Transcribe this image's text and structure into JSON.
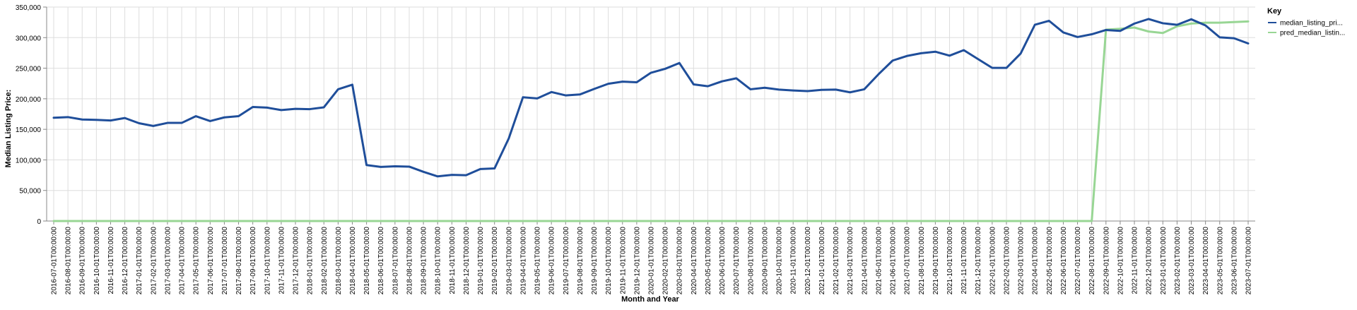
{
  "chart_data": {
    "type": "line",
    "xlabel": "Month and Year",
    "ylabel": "Median Listing Price:",
    "ylim": [
      0,
      350000
    ],
    "yticks": [
      0,
      50000,
      100000,
      150000,
      200000,
      250000,
      300000,
      350000
    ],
    "ytick_labels": [
      "0",
      "50,000",
      "100,000",
      "150,000",
      "200,000",
      "250,000",
      "300,000",
      "350,000"
    ],
    "grid": true,
    "legend": {
      "title": "Key",
      "position": "right"
    },
    "x": [
      "2016-07-01T00:00:00",
      "2016-08-01T00:00:00",
      "2016-09-01T00:00:00",
      "2016-10-01T00:00:00",
      "2016-11-01T00:00:00",
      "2016-12-01T00:00:00",
      "2017-01-01T00:00:00",
      "2017-02-01T00:00:00",
      "2017-03-01T00:00:00",
      "2017-04-01T00:00:00",
      "2017-05-01T00:00:00",
      "2017-06-01T00:00:00",
      "2017-07-01T00:00:00",
      "2017-08-01T00:00:00",
      "2017-09-01T00:00:00",
      "2017-10-01T00:00:00",
      "2017-11-01T00:00:00",
      "2017-12-01T00:00:00",
      "2018-01-01T00:00:00",
      "2018-02-01T00:00:00",
      "2018-03-01T00:00:00",
      "2018-04-01T00:00:00",
      "2018-05-01T00:00:00",
      "2018-06-01T00:00:00",
      "2018-07-01T00:00:00",
      "2018-08-01T00:00:00",
      "2018-09-01T00:00:00",
      "2018-10-01T00:00:00",
      "2018-11-01T00:00:00",
      "2018-12-01T00:00:00",
      "2019-01-01T00:00:00",
      "2019-02-01T00:00:00",
      "2019-03-01T00:00:00",
      "2019-04-01T00:00:00",
      "2019-05-01T00:00:00",
      "2019-06-01T00:00:00",
      "2019-07-01T00:00:00",
      "2019-08-01T00:00:00",
      "2019-09-01T00:00:00",
      "2019-10-01T00:00:00",
      "2019-11-01T00:00:00",
      "2019-12-01T00:00:00",
      "2020-01-01T00:00:00",
      "2020-02-01T00:00:00",
      "2020-03-01T00:00:00",
      "2020-04-01T00:00:00",
      "2020-05-01T00:00:00",
      "2020-06-01T00:00:00",
      "2020-07-01T00:00:00",
      "2020-08-01T00:00:00",
      "2020-09-01T00:00:00",
      "2020-10-01T00:00:00",
      "2020-11-01T00:00:00",
      "2020-12-01T00:00:00",
      "2021-01-01T00:00:00",
      "2021-02-01T00:00:00",
      "2021-03-01T00:00:00",
      "2021-04-01T00:00:00",
      "2021-05-01T00:00:00",
      "2021-06-01T00:00:00",
      "2021-07-01T00:00:00",
      "2021-08-01T00:00:00",
      "2021-09-01T00:00:00",
      "2021-10-01T00:00:00",
      "2021-11-01T00:00:00",
      "2021-12-01T00:00:00",
      "2022-01-01T00:00:00",
      "2022-02-01T00:00:00",
      "2022-03-01T00:00:00",
      "2022-04-01T00:00:00",
      "2022-05-01T00:00:00",
      "2022-06-01T00:00:00",
      "2022-07-01T00:00:00",
      "2022-08-01T00:00:00",
      "2022-09-01T00:00:00",
      "2022-10-01T00:00:00",
      "2022-11-01T00:00:00",
      "2022-12-01T00:00:00",
      "2023-01-01T00:00:00",
      "2023-02-01T00:00:00",
      "2023-03-01T00:00:00",
      "2023-04-01T00:00:00",
      "2023-05-01T00:00:00",
      "2023-06-01T00:00:00",
      "2023-07-01T00:00:00"
    ],
    "series": [
      {
        "name": "median_listing_pri...",
        "color": "#1f4e9a",
        "values": [
          169000,
          170000,
          166000,
          165500,
          164500,
          168500,
          160000,
          155500,
          160500,
          160500,
          171500,
          163500,
          169500,
          171500,
          186500,
          185500,
          181500,
          183500,
          183000,
          186000,
          215500,
          223000,
          91500,
          88500,
          89500,
          89000,
          80500,
          73000,
          75500,
          75000,
          85000,
          86000,
          135000,
          202500,
          200500,
          211000,
          205500,
          207000,
          216000,
          224500,
          228000,
          227000,
          242500,
          249000,
          258500,
          223500,
          220500,
          228500,
          233500,
          215500,
          218000,
          215000,
          213500,
          212500,
          214500,
          215000,
          210500,
          215500,
          240000,
          262500,
          270000,
          274500,
          277000,
          270500,
          279500,
          265000,
          250500,
          250500,
          274000,
          321000,
          327500,
          308500,
          301000,
          305500,
          312500,
          311000,
          323000,
          330500,
          323500,
          321000,
          330000,
          320000,
          300500,
          299000,
          290500
        ]
      },
      {
        "name": "pred_median_listin...",
        "color": "#98d694",
        "values": [
          0,
          0,
          0,
          0,
          0,
          0,
          0,
          0,
          0,
          0,
          0,
          0,
          0,
          0,
          0,
          0,
          0,
          0,
          0,
          0,
          0,
          0,
          0,
          0,
          0,
          0,
          0,
          0,
          0,
          0,
          0,
          0,
          0,
          0,
          0,
          0,
          0,
          0,
          0,
          0,
          0,
          0,
          0,
          0,
          0,
          0,
          0,
          0,
          0,
          0,
          0,
          0,
          0,
          0,
          0,
          0,
          0,
          0,
          0,
          0,
          0,
          0,
          0,
          0,
          0,
          0,
          0,
          0,
          0,
          0,
          0,
          0,
          0,
          0,
          313000,
          314500,
          316500,
          310000,
          307500,
          318500,
          323000,
          324500,
          324500,
          325500,
          326500
        ]
      }
    ]
  }
}
